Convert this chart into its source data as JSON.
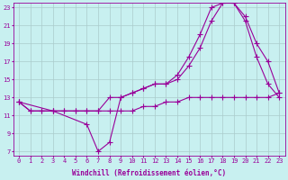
{
  "xlabel": "Windchill (Refroidissement éolien,°C)",
  "bg_color": "#c8f0f0",
  "line_color": "#990099",
  "grid_color": "#aacccc",
  "xlim": [
    -0.5,
    23.5
  ],
  "ylim": [
    6.5,
    23.5
  ],
  "yticks": [
    7,
    9,
    11,
    13,
    15,
    17,
    19,
    21,
    23
  ],
  "xticks": [
    0,
    1,
    2,
    3,
    4,
    5,
    6,
    7,
    8,
    9,
    10,
    11,
    12,
    13,
    14,
    15,
    16,
    17,
    18,
    19,
    20,
    21,
    22,
    23
  ],
  "line1_x": [
    0,
    1,
    2,
    3,
    4,
    5,
    6,
    7,
    8,
    9,
    10,
    11,
    12,
    13,
    14,
    15,
    16,
    17,
    18,
    19,
    20,
    21,
    22,
    23
  ],
  "line1_y": [
    12.5,
    11.5,
    11.5,
    11.5,
    11.5,
    11.5,
    11.5,
    11.5,
    13.0,
    13.0,
    13.5,
    14.0,
    14.5,
    14.5,
    15.0,
    16.5,
    18.5,
    21.5,
    23.5,
    23.5,
    22.0,
    19.0,
    17.0,
    13.5
  ],
  "line2_x": [
    0,
    3,
    6,
    7,
    8,
    9,
    10,
    11,
    12,
    13,
    14,
    15,
    16,
    17,
    18,
    19,
    20,
    21,
    22,
    23
  ],
  "line2_y": [
    12.5,
    11.5,
    10.0,
    7.0,
    8.0,
    13.0,
    13.5,
    14.0,
    14.5,
    14.5,
    15.5,
    17.5,
    20.0,
    23.0,
    23.5,
    23.5,
    21.5,
    17.5,
    14.5,
    13.0
  ],
  "line3_x": [
    0,
    1,
    2,
    3,
    4,
    5,
    6,
    7,
    8,
    9,
    10,
    11,
    12,
    13,
    14,
    15,
    16,
    17,
    18,
    19,
    20,
    21,
    22,
    23
  ],
  "line3_y": [
    12.5,
    11.5,
    11.5,
    11.5,
    11.5,
    11.5,
    11.5,
    11.5,
    11.5,
    11.5,
    11.5,
    12.0,
    12.0,
    12.5,
    12.5,
    13.0,
    13.0,
    13.0,
    13.0,
    13.0,
    13.0,
    13.0,
    13.0,
    13.5
  ]
}
